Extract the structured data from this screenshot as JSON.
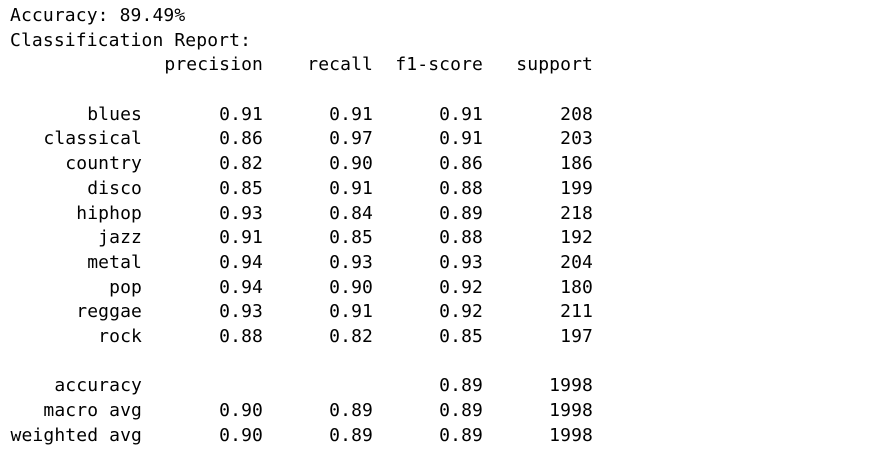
{
  "accuracy_line": "Accuracy: 89.49%",
  "report_title": "Classification Report:",
  "headers": {
    "precision": "precision",
    "recall": "recall",
    "f1_score": "f1-score",
    "support": "support"
  },
  "rows": [
    {
      "label": "blues",
      "precision": "0.91",
      "recall": "0.91",
      "f1_score": "0.91",
      "support": "208"
    },
    {
      "label": "classical",
      "precision": "0.86",
      "recall": "0.97",
      "f1_score": "0.91",
      "support": "203"
    },
    {
      "label": "country",
      "precision": "0.82",
      "recall": "0.90",
      "f1_score": "0.86",
      "support": "186"
    },
    {
      "label": "disco",
      "precision": "0.85",
      "recall": "0.91",
      "f1_score": "0.88",
      "support": "199"
    },
    {
      "label": "hiphop",
      "precision": "0.93",
      "recall": "0.84",
      "f1_score": "0.89",
      "support": "218"
    },
    {
      "label": "jazz",
      "precision": "0.91",
      "recall": "0.85",
      "f1_score": "0.88",
      "support": "192"
    },
    {
      "label": "metal",
      "precision": "0.94",
      "recall": "0.93",
      "f1_score": "0.93",
      "support": "204"
    },
    {
      "label": "pop",
      "precision": "0.94",
      "recall": "0.90",
      "f1_score": "0.92",
      "support": "180"
    },
    {
      "label": "reggae",
      "precision": "0.93",
      "recall": "0.91",
      "f1_score": "0.92",
      "support": "211"
    },
    {
      "label": "rock",
      "precision": "0.88",
      "recall": "0.82",
      "f1_score": "0.85",
      "support": "197"
    }
  ],
  "summary": [
    {
      "label": "accuracy",
      "precision": "",
      "recall": "",
      "f1_score": "0.89",
      "support": "1998"
    },
    {
      "label": "macro avg",
      "precision": "0.90",
      "recall": "0.89",
      "f1_score": "0.89",
      "support": "1998"
    },
    {
      "label": "weighted avg",
      "precision": "0.90",
      "recall": "0.89",
      "f1_score": "0.89",
      "support": "1998"
    }
  ]
}
